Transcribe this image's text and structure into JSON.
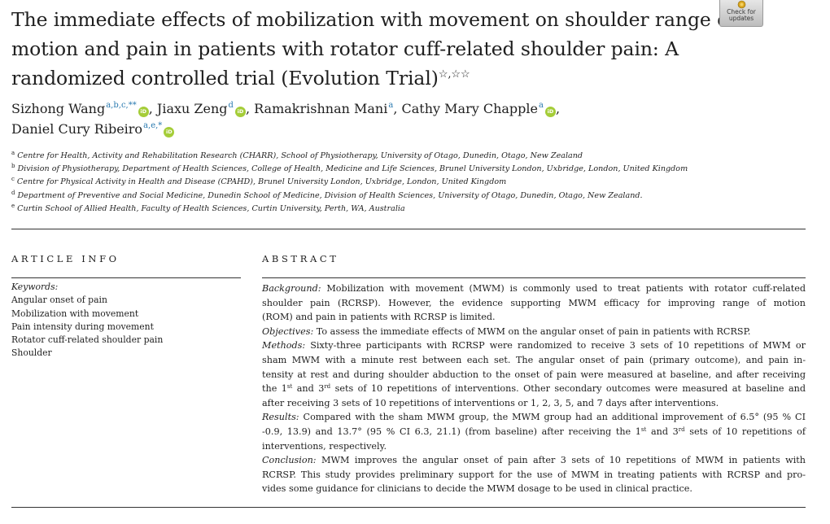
{
  "title": {
    "lines": [
      "The immediate effects of mobilization with movement on shoulder range of",
      "motion and pain in patients with rotator cuff-related shoulder pain: A",
      "randomized controlled trial (Evolution Trial)"
    ],
    "footnote_marks": "☆,☆☆"
  },
  "check_badge": {
    "line1": "Check for",
    "line2": "updates",
    "icon": "check-updates-icon"
  },
  "authors": {
    "line1": [
      {
        "name": "Sizhong Wang",
        "sup": "a,b,c,**",
        "orcid": true,
        "sep": ","
      },
      {
        "name": "Jiaxu Zeng",
        "sup": "d",
        "orcid": true,
        "sep": ","
      },
      {
        "name": "Ramakrishnan Mani",
        "sup": "a",
        "orcid": false,
        "sep": ","
      },
      {
        "name": "Cathy Mary Chapple",
        "sup": "a",
        "orcid": true,
        "sep": ","
      }
    ],
    "line2": [
      {
        "name": "Daniel Cury Ribeiro",
        "sup": "a,e,*",
        "orcid": true,
        "sep": ""
      }
    ],
    "orcid_label": "iD"
  },
  "affiliations": [
    {
      "mark": "a",
      "text": "Centre for Health, Activity and Rehabilitation Research (CHARR), School of Physiotherapy, University of Otago, Dunedin, Otago, New Zealand"
    },
    {
      "mark": "b",
      "text": "Division of Physiotherapy, Department of Health Sciences, College of Health, Medicine and Life Sciences, Brunel University London, Uxbridge, London, United Kingdom"
    },
    {
      "mark": "c",
      "text": "Centre for Physical Activity in Health and Disease (CPAHD), Brunel University London, Uxbridge, London, United Kingdom"
    },
    {
      "mark": "d",
      "text": "Department of Preventive and Social Medicine, Dunedin School of Medicine, Division of Health Sciences, University of Otago, Dunedin, Otago, New Zealand."
    },
    {
      "mark": "e",
      "text": "Curtin School of Allied Health, Faculty of Health Sciences, Curtin University, Perth, WA, Australia"
    }
  ],
  "article_info": {
    "heading": "ARTICLE INFO",
    "keywords_label": "Keywords:",
    "keywords": [
      "Angular onset of pain",
      "Mobilization with movement",
      "Pain intensity during movement",
      "Rotator cuff-related shoulder pain",
      "Shoulder"
    ]
  },
  "abstract": {
    "heading": "ABSTRACT",
    "background_label": "Background:",
    "background_l1": " Mobilization with movement (MWM) is commonly used to treat patients with rotator cuff-related",
    "background_l2": "shoulder pain (RCRSP). However, the evidence supporting MWM efficacy for improving range of motion",
    "background_l3": "(ROM) and pain in patients with RCRSP is limited.",
    "objectives_label": "Objectives:",
    "objectives_l1": " To assess the immediate effects of MWM on the angular onset of pain in patients with RCRSP.",
    "methods_label": "Methods:",
    "methods_l1": " Sixty-three participants with RCRSP were randomized to receive 3 sets of 10 repetitions of MWM or",
    "methods_l2": "sham MWM with a minute rest between each set. The angular onset of pain (primary outcome), and pain in-",
    "methods_l3": "tensity at rest and during shoulder abduction to the onset of pain were measured at baseline, and after receiving",
    "methods_l4a": "the 1",
    "methods_l4_sup1": "st",
    "methods_l4b": " and 3",
    "methods_l4_sup2": "rd",
    "methods_l4c": " sets of 10 repetitions of interventions. Other secondary outcomes were measured at baseline and",
    "methods_l5": "after receiving 3 sets of 10 repetitions of interventions or 1, 2, 3, 5, and 7 days after interventions.",
    "results_label": "Results:",
    "results_l1": " Compared with the sham MWM group, the MWM group had an additional improvement of 6.5° (95 % CI",
    "results_l2a": "-0.9, 13.9) and 13.7° (95 % CI 6.3, 21.1) (from baseline) after receiving the 1",
    "results_l2_sup1": "st",
    "results_l2b": " and 3",
    "results_l2_sup2": "rd",
    "results_l2c": " sets of 10 repetitions of",
    "results_l3": "interventions, respectively.",
    "conclusion_label": "Conclusion:",
    "conclusion_l1": " MWM improves the angular onset of pain after 3 sets of 10 repetitions of MWM in patients with",
    "conclusion_l2": "RCRSP. This study provides preliminary support for the use of MWM in treating patients with RCRSP and pro-",
    "conclusion_l3": "vides some guidance for clinicians to decide the MWM dosage to be used in clinical practice."
  }
}
